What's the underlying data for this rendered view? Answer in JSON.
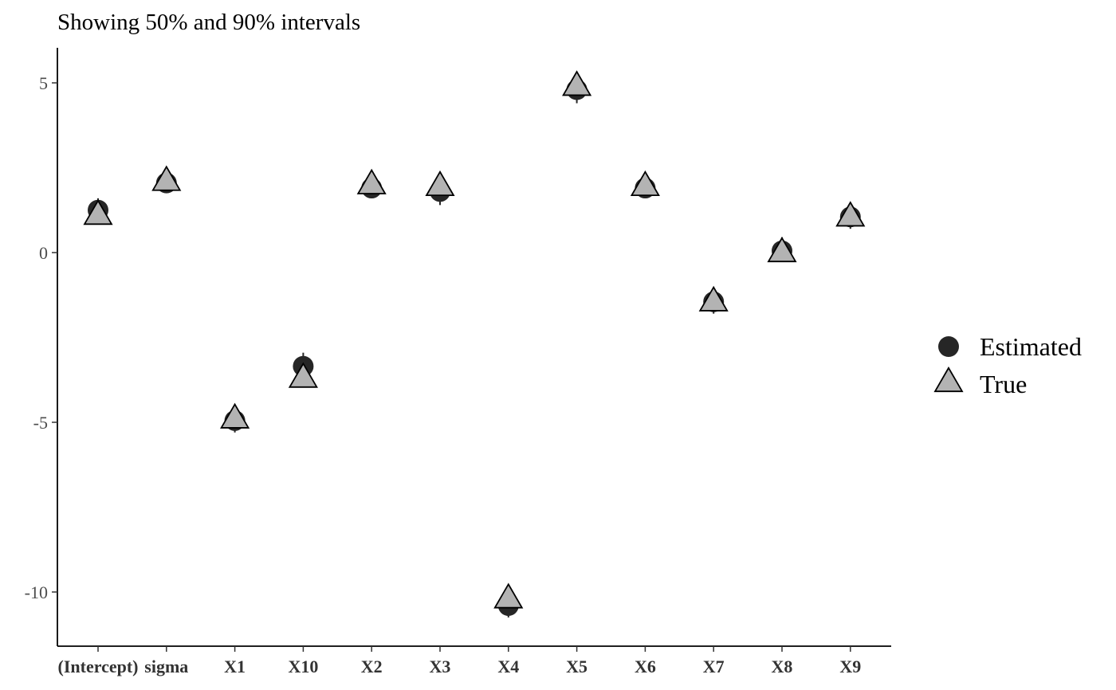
{
  "chart_data": {
    "type": "scatter",
    "subtitle": "Showing 50% and 90% intervals",
    "title": "",
    "xlabel": "",
    "ylabel": "",
    "categories": [
      "(Intercept)",
      "sigma",
      "X1",
      "X10",
      "X2",
      "X3",
      "X4",
      "X5",
      "X6",
      "X7",
      "X8",
      "X9"
    ],
    "ylim": [
      -11.6,
      6.0
    ],
    "yticks": [
      5,
      0,
      -5,
      -10
    ],
    "ytick_labels": [
      "5",
      "0",
      "-5",
      "-10"
    ],
    "grid": false,
    "legend_position": "right",
    "series": [
      {
        "name": "Estimated",
        "marker": "circle",
        "color": "#262626",
        "values": [
          1.25,
          2.05,
          -4.95,
          -3.35,
          1.9,
          1.8,
          -10.4,
          4.8,
          1.9,
          -1.45,
          0.05,
          1.05
        ],
        "interval_50": [
          [
            1.15,
            1.4
          ],
          [
            1.98,
            2.12
          ],
          [
            -5.05,
            -4.85
          ],
          [
            -3.45,
            -3.2
          ],
          [
            1.8,
            2.0
          ],
          [
            1.7,
            1.9
          ],
          [
            -10.5,
            -10.3
          ],
          [
            4.7,
            4.9
          ],
          [
            1.8,
            2.0
          ],
          [
            -1.55,
            -1.35
          ],
          [
            -0.05,
            0.15
          ],
          [
            0.95,
            1.15
          ]
        ],
        "interval_90": [
          [
            1.0,
            1.6
          ],
          [
            1.92,
            2.22
          ],
          [
            -5.3,
            -4.65
          ],
          [
            -3.65,
            -2.95
          ],
          [
            1.6,
            2.2
          ],
          [
            1.4,
            2.1
          ],
          [
            -10.75,
            -10.05
          ],
          [
            4.4,
            5.2
          ],
          [
            1.6,
            2.2
          ],
          [
            -1.8,
            -1.1
          ],
          [
            -0.25,
            0.45
          ],
          [
            0.7,
            1.35
          ]
        ]
      },
      {
        "name": "True",
        "marker": "triangle",
        "color": "#b3b3b3",
        "stroke": "#000000",
        "values": [
          1.1,
          2.1,
          -4.9,
          -3.7,
          2.0,
          1.95,
          -10.2,
          4.9,
          1.95,
          -1.45,
          0.0,
          1.05
        ]
      }
    ]
  }
}
